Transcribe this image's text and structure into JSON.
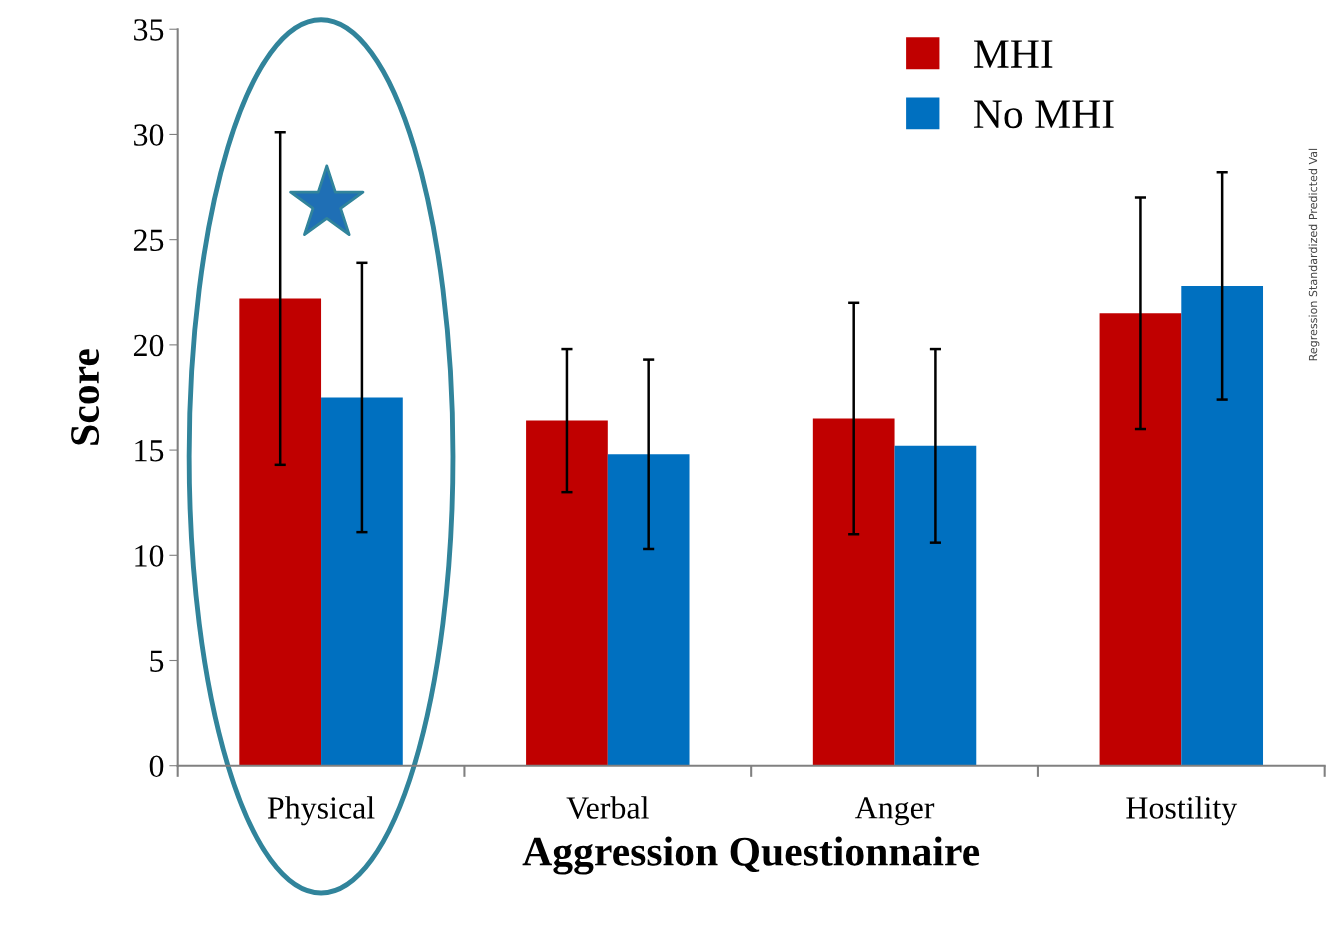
{
  "chart_data": {
    "type": "bar",
    "xlabel": "Aggression Questionnaire",
    "ylabel": "Score",
    "categories": [
      "Physical",
      "Verbal",
      "Anger",
      "Hostility"
    ],
    "series": [
      {
        "name": "MHI",
        "color": "#c00000",
        "values": [
          22.2,
          16.4,
          16.5,
          21.5
        ],
        "errors": [
          7.9,
          3.4,
          5.5,
          5.5
        ]
      },
      {
        "name": "No MHI",
        "color": "#0070c0",
        "values": [
          17.5,
          14.8,
          15.2,
          22.8
        ],
        "errors": [
          6.4,
          4.5,
          4.6,
          5.4
        ]
      }
    ],
    "ylim": [
      0,
      35
    ],
    "yticks": [
      0,
      5,
      10,
      15,
      20,
      25,
      30,
      35
    ],
    "grid": false,
    "legend": "top right",
    "annotations": [
      "Regression Standardized Predicted Val"
    ]
  }
}
